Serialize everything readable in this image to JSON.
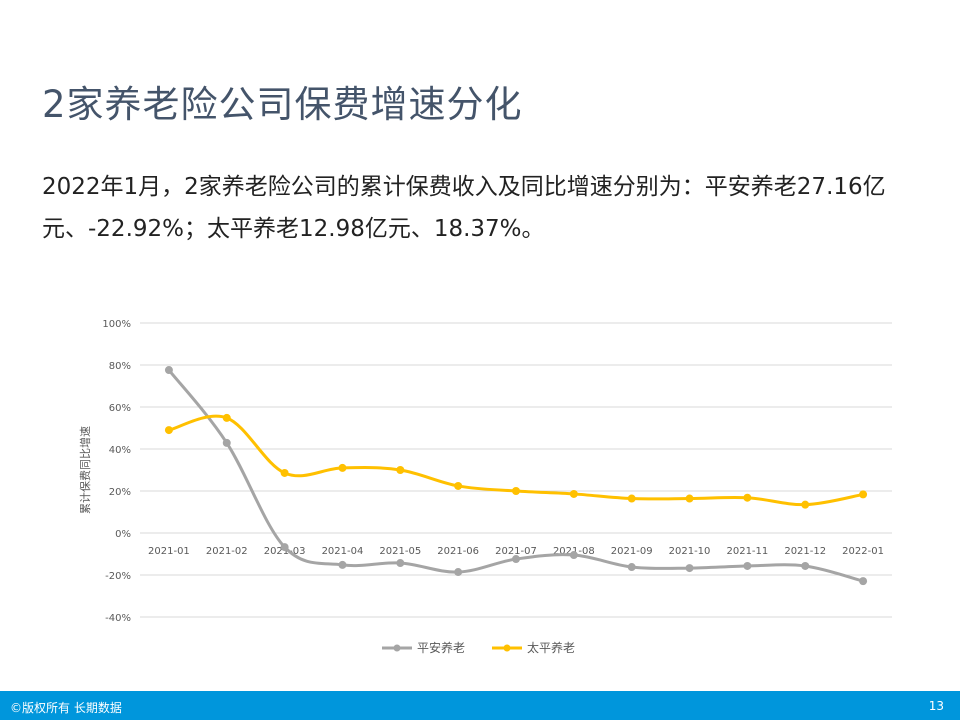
{
  "slide": {
    "title": "2家养老险公司保费增速分化",
    "description": "2022年1月，2家养老险公司的累计保费收入及同比增速分别为：平安养老27.16亿元、-22.92%；太平养老12.98亿元、18.37%。",
    "footer_left": "©版权所有 长期数据",
    "page_number": "13"
  },
  "chart_data": {
    "type": "line",
    "title": "",
    "xlabel": "",
    "ylabel": "累计保费同比增速",
    "ylim": [
      -40,
      100
    ],
    "yticks": [
      -40,
      -20,
      0,
      20,
      40,
      60,
      80,
      100
    ],
    "ytick_format": "%",
    "grid": true,
    "legend_position": "bottom",
    "categories": [
      "2021-01",
      "2021-02",
      "2021-03",
      "2021-04",
      "2021-05",
      "2021-06",
      "2021-07",
      "2021-08",
      "2021-09",
      "2021-10",
      "2021-11",
      "2021-12",
      "2022-01"
    ],
    "series": [
      {
        "name": "平安养老",
        "color": "#a5a5a5",
        "values": [
          77.6,
          42.9,
          -6.7,
          -15.2,
          -14.3,
          -18.6,
          -12.4,
          -10.5,
          -16.2,
          -16.7,
          -15.7,
          -15.7,
          -22.92
        ]
      },
      {
        "name": "太平养老",
        "color": "#ffc000",
        "values": [
          49.0,
          54.8,
          28.6,
          31.0,
          30.0,
          22.4,
          20.0,
          18.6,
          16.4,
          16.4,
          16.8,
          13.5,
          18.37
        ]
      }
    ]
  }
}
